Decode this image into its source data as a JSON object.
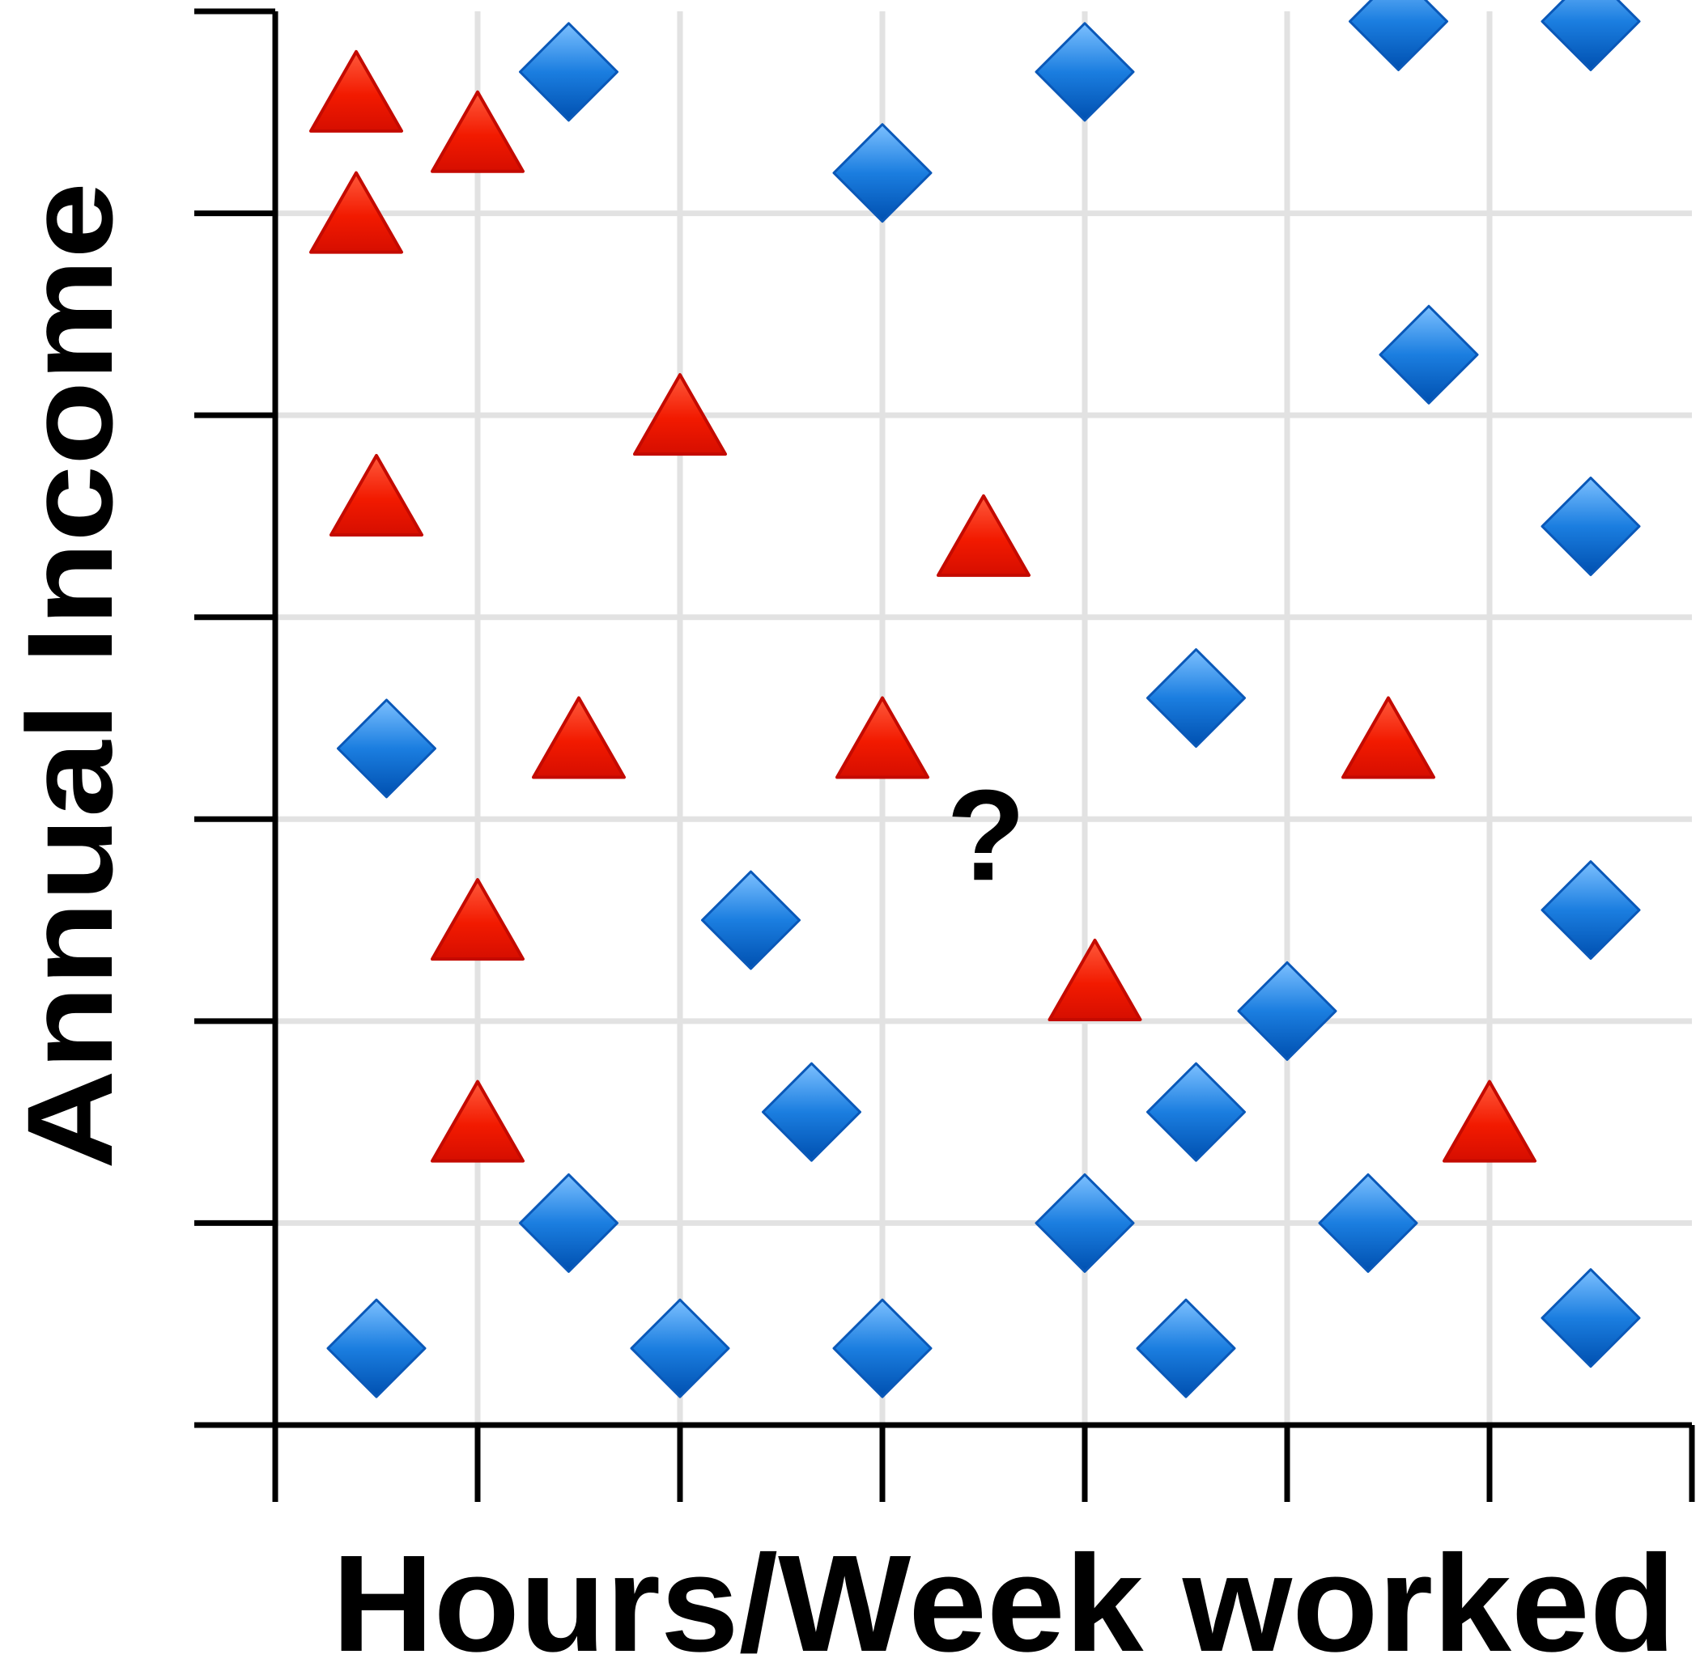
{
  "chart_data": {
    "type": "scatter",
    "title": "",
    "xlabel": "Hours/Week worked",
    "ylabel": "Annual Income",
    "xlim": [
      0,
      7
    ],
    "ylim": [
      0,
      7
    ],
    "grid": true,
    "legend": "none",
    "x_ticks": [
      0,
      1,
      2,
      3,
      4,
      5,
      6,
      7
    ],
    "y_ticks": [
      0,
      1,
      2,
      3,
      4,
      5,
      6,
      7
    ],
    "colors": {
      "triangle_fill": "#ee1100",
      "diamond_fill": "#0a6fd0",
      "grid": "#e2e2e2",
      "axis": "#000000"
    },
    "series": [
      {
        "marker": "triangle",
        "color": "#ee1100",
        "points": [
          [
            0.4,
            6.6
          ],
          [
            1.0,
            6.4
          ],
          [
            0.4,
            6.0
          ],
          [
            2.0,
            5.0
          ],
          [
            0.5,
            4.6
          ],
          [
            3.5,
            4.4
          ],
          [
            1.5,
            3.4
          ],
          [
            3.0,
            3.4
          ],
          [
            5.5,
            3.4
          ],
          [
            1.0,
            2.5
          ],
          [
            4.05,
            2.2
          ],
          [
            1.0,
            1.5
          ],
          [
            6.0,
            1.5
          ]
        ]
      },
      {
        "marker": "diamond",
        "color": "#0a6fd0",
        "points": [
          [
            1.45,
            6.7
          ],
          [
            4.0,
            6.7
          ],
          [
            5.55,
            6.95
          ],
          [
            6.5,
            6.95
          ],
          [
            3.0,
            6.2
          ],
          [
            5.7,
            5.3
          ],
          [
            6.5,
            4.45
          ],
          [
            4.55,
            3.6
          ],
          [
            0.55,
            3.35
          ],
          [
            2.35,
            2.5
          ],
          [
            6.5,
            2.55
          ],
          [
            5.0,
            2.05
          ],
          [
            2.65,
            1.55
          ],
          [
            4.55,
            1.55
          ],
          [
            1.45,
            1.0
          ],
          [
            4.0,
            1.0
          ],
          [
            5.4,
            1.0
          ],
          [
            0.5,
            0.38
          ],
          [
            2.0,
            0.38
          ],
          [
            3.0,
            0.38
          ],
          [
            4.5,
            0.38
          ],
          [
            6.5,
            0.53
          ]
        ]
      }
    ],
    "annotations": [
      {
        "text": "?",
        "x": 3.5,
        "y": 3.0
      }
    ]
  }
}
